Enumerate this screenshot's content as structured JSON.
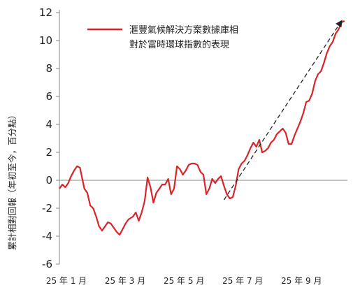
{
  "chart_data": {
    "type": "line",
    "title": "",
    "ylabel": "累計相對回報（年初至今，百分點）",
    "xlabel": "",
    "ylim": [
      -6,
      12
    ],
    "yticks": [
      -6,
      -4,
      -2,
      0,
      2,
      4,
      6,
      8,
      10,
      12
    ],
    "x_tick_labels": [
      "25 年 1 月",
      "25 年 3 月",
      "25 年 5 月",
      "25 年 7 月",
      "25 年 9 月"
    ],
    "x_tick_positions": [
      0,
      2,
      4,
      6,
      8
    ],
    "x_unit": "months since 25 年 1 月",
    "grid": false,
    "legend_position": "top-right",
    "series": [
      {
        "name": "滙豐氣候解決方案數據庫相對於富時環球指數的表現",
        "color": "#d9242a",
        "x": [
          0,
          0.1,
          0.2,
          0.3,
          0.4,
          0.5,
          0.6,
          0.7,
          0.85,
          0.95,
          1.05,
          1.15,
          1.25,
          1.35,
          1.45,
          1.55,
          1.65,
          1.75,
          1.85,
          1.95,
          2.05,
          2.15,
          2.25,
          2.35,
          2.5,
          2.6,
          2.7,
          2.8,
          2.9,
          3.0,
          3.1,
          3.2,
          3.3,
          3.4,
          3.5,
          3.6,
          3.7,
          3.8,
          3.9,
          4.0,
          4.1,
          4.2,
          4.3,
          4.4,
          4.5,
          4.6,
          4.7,
          4.8,
          4.9,
          5.0,
          5.1,
          5.2,
          5.3,
          5.4,
          5.5,
          5.6,
          5.7,
          5.8,
          5.9,
          6.0,
          6.1,
          6.2,
          6.3,
          6.4,
          6.5,
          6.6,
          6.7,
          6.8,
          6.9,
          7.0,
          7.1,
          7.2,
          7.3,
          7.4,
          7.5,
          7.6,
          7.7,
          7.8,
          7.9,
          8.0,
          8.1,
          8.2,
          8.3,
          8.4,
          8.5,
          8.6,
          8.7,
          8.8,
          8.9,
          9.0,
          9.1,
          9.2,
          9.3,
          9.4,
          9.5,
          9.6,
          9.7
        ],
        "values": [
          -0.6,
          -0.3,
          -0.5,
          -0.2,
          0.3,
          0.7,
          1.0,
          0.9,
          -0.6,
          -0.9,
          -1.8,
          -2.0,
          -2.6,
          -3.3,
          -3.6,
          -3.3,
          -3.0,
          -3.1,
          -3.4,
          -3.7,
          -3.9,
          -3.5,
          -3.1,
          -2.8,
          -2.6,
          -2.3,
          -2.9,
          -2.3,
          -1.5,
          0.2,
          -0.5,
          -1.6,
          -0.9,
          -0.6,
          -0.3,
          -0.3,
          0.1,
          -1.0,
          -0.6,
          1.0,
          0.8,
          0.4,
          0.7,
          1.1,
          1.2,
          1.2,
          1.1,
          0.6,
          0.4,
          -1.0,
          -0.6,
          0.1,
          -0.2,
          0.1,
          0.3,
          -0.4,
          -1.0,
          -1.3,
          -1.2,
          -0.4,
          0.8,
          1.2,
          1.4,
          1.8,
          2.3,
          2.7,
          2.4,
          2.9,
          2.0,
          2.1,
          2.3,
          2.7,
          2.9,
          3.3,
          3.5,
          3.7,
          3.4,
          2.6,
          2.6,
          3.2,
          3.7,
          4.2,
          4.8,
          5.6,
          5.7,
          6.2,
          7.1,
          7.6,
          7.8,
          8.4,
          9.1,
          9.6,
          9.9,
          10.5,
          10.8,
          11.3,
          11.4
        ]
      }
    ],
    "annotations": [
      {
        "type": "dashed-arrow",
        "x1": 5.6,
        "y1": -1.4,
        "x2": 9.6,
        "y2": 11.4
      }
    ]
  }
}
